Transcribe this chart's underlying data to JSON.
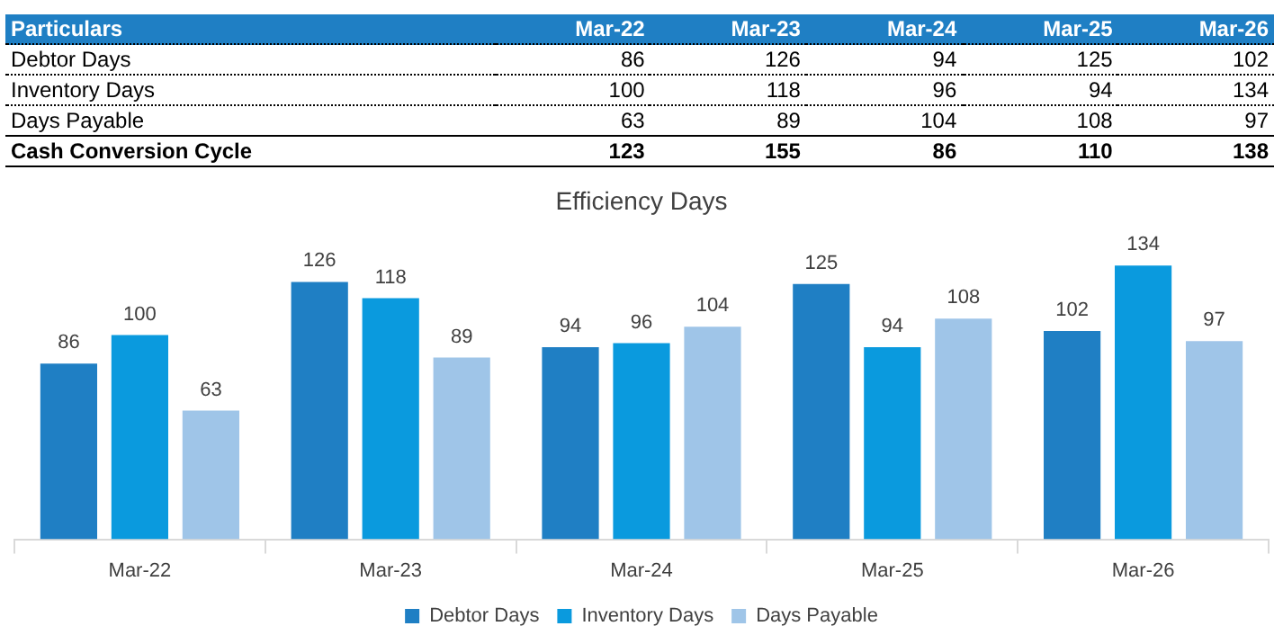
{
  "chart_data": [
    {
      "type": "other",
      "annotations": [
        "Particulars"
      ],
      "categories": [
        "Mar-22",
        "Mar-23",
        "Mar-24",
        "Mar-25",
        "Mar-26"
      ],
      "data_labels": true,
      "series": [
        {
          "name": "Debtor Days",
          "values": [
            86,
            126,
            94,
            125,
            102
          ]
        },
        {
          "name": "Inventory Days",
          "values": [
            100,
            118,
            96,
            94,
            134
          ]
        },
        {
          "name": "Days Payable",
          "values": [
            63,
            89,
            104,
            108,
            97
          ]
        },
        {
          "name": "Cash Conversion Cycle",
          "values": [
            123,
            155,
            86,
            110,
            138
          ]
        }
      ]
    },
    {
      "type": "bar",
      "title": "Efficiency Days",
      "categories": [
        "Mar-22",
        "Mar-23",
        "Mar-24",
        "Mar-25",
        "Mar-26"
      ],
      "series": [
        {
          "name": "Debtor Days",
          "color": "#1f7fc4",
          "values": [
            86,
            126,
            94,
            125,
            102
          ]
        },
        {
          "name": "Inventory Days",
          "color": "#0a9ade",
          "values": [
            100,
            118,
            96,
            94,
            134
          ]
        },
        {
          "name": "Days Payable",
          "color": "#9fc5e8",
          "values": [
            63,
            89,
            104,
            108,
            97
          ]
        }
      ],
      "legend": "bottom",
      "data_labels": true
    }
  ]
}
